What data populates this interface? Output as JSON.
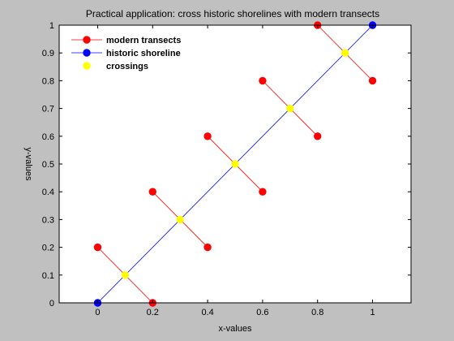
{
  "chart_data": {
    "type": "line",
    "title": "Practical application: cross historic shorelines with modern transects",
    "xlabel": "x-values",
    "ylabel": "y-values",
    "xlim": [
      -0.14,
      1.14
    ],
    "ylim": [
      0,
      1
    ],
    "xticks": [
      0,
      0.2,
      0.4,
      0.6,
      0.8,
      1
    ],
    "xtick_labels": [
      "0",
      "0.2",
      "0.4",
      "0.6",
      "0.8",
      "1"
    ],
    "yticks": [
      0,
      0.1,
      0.2,
      0.3,
      0.4,
      0.5,
      0.6,
      0.7,
      0.8,
      0.9,
      1
    ],
    "ytick_labels": [
      "0",
      "0.1",
      "0.2",
      "0.3",
      "0.4",
      "0.5",
      "0.6",
      "0.7",
      "0.8",
      "0.9",
      "1"
    ],
    "grid": false,
    "legend_position": "top-left",
    "series": [
      {
        "name": "modern transects",
        "color": "#ff0000",
        "style": "line-marker",
        "segments": [
          [
            [
              0,
              0.2
            ],
            [
              0.2,
              0
            ]
          ],
          [
            [
              0.2,
              0.4
            ],
            [
              0.4,
              0.2
            ]
          ],
          [
            [
              0.4,
              0.6
            ],
            [
              0.6,
              0.4
            ]
          ],
          [
            [
              0.6,
              0.8
            ],
            [
              0.8,
              0.6
            ]
          ],
          [
            [
              0.8,
              1.0
            ],
            [
              1.0,
              0.8
            ]
          ]
        ]
      },
      {
        "name": "historic shoreline",
        "color": "#0000ff",
        "style": "line-marker",
        "segments": [
          [
            [
              0,
              0
            ],
            [
              1,
              1
            ]
          ]
        ]
      },
      {
        "name": "crossings",
        "color": "#ffff00",
        "style": "marker",
        "points": [
          [
            0.1,
            0.1
          ],
          [
            0.3,
            0.3
          ],
          [
            0.5,
            0.5
          ],
          [
            0.7,
            0.7
          ],
          [
            0.9,
            0.9
          ]
        ]
      }
    ]
  }
}
